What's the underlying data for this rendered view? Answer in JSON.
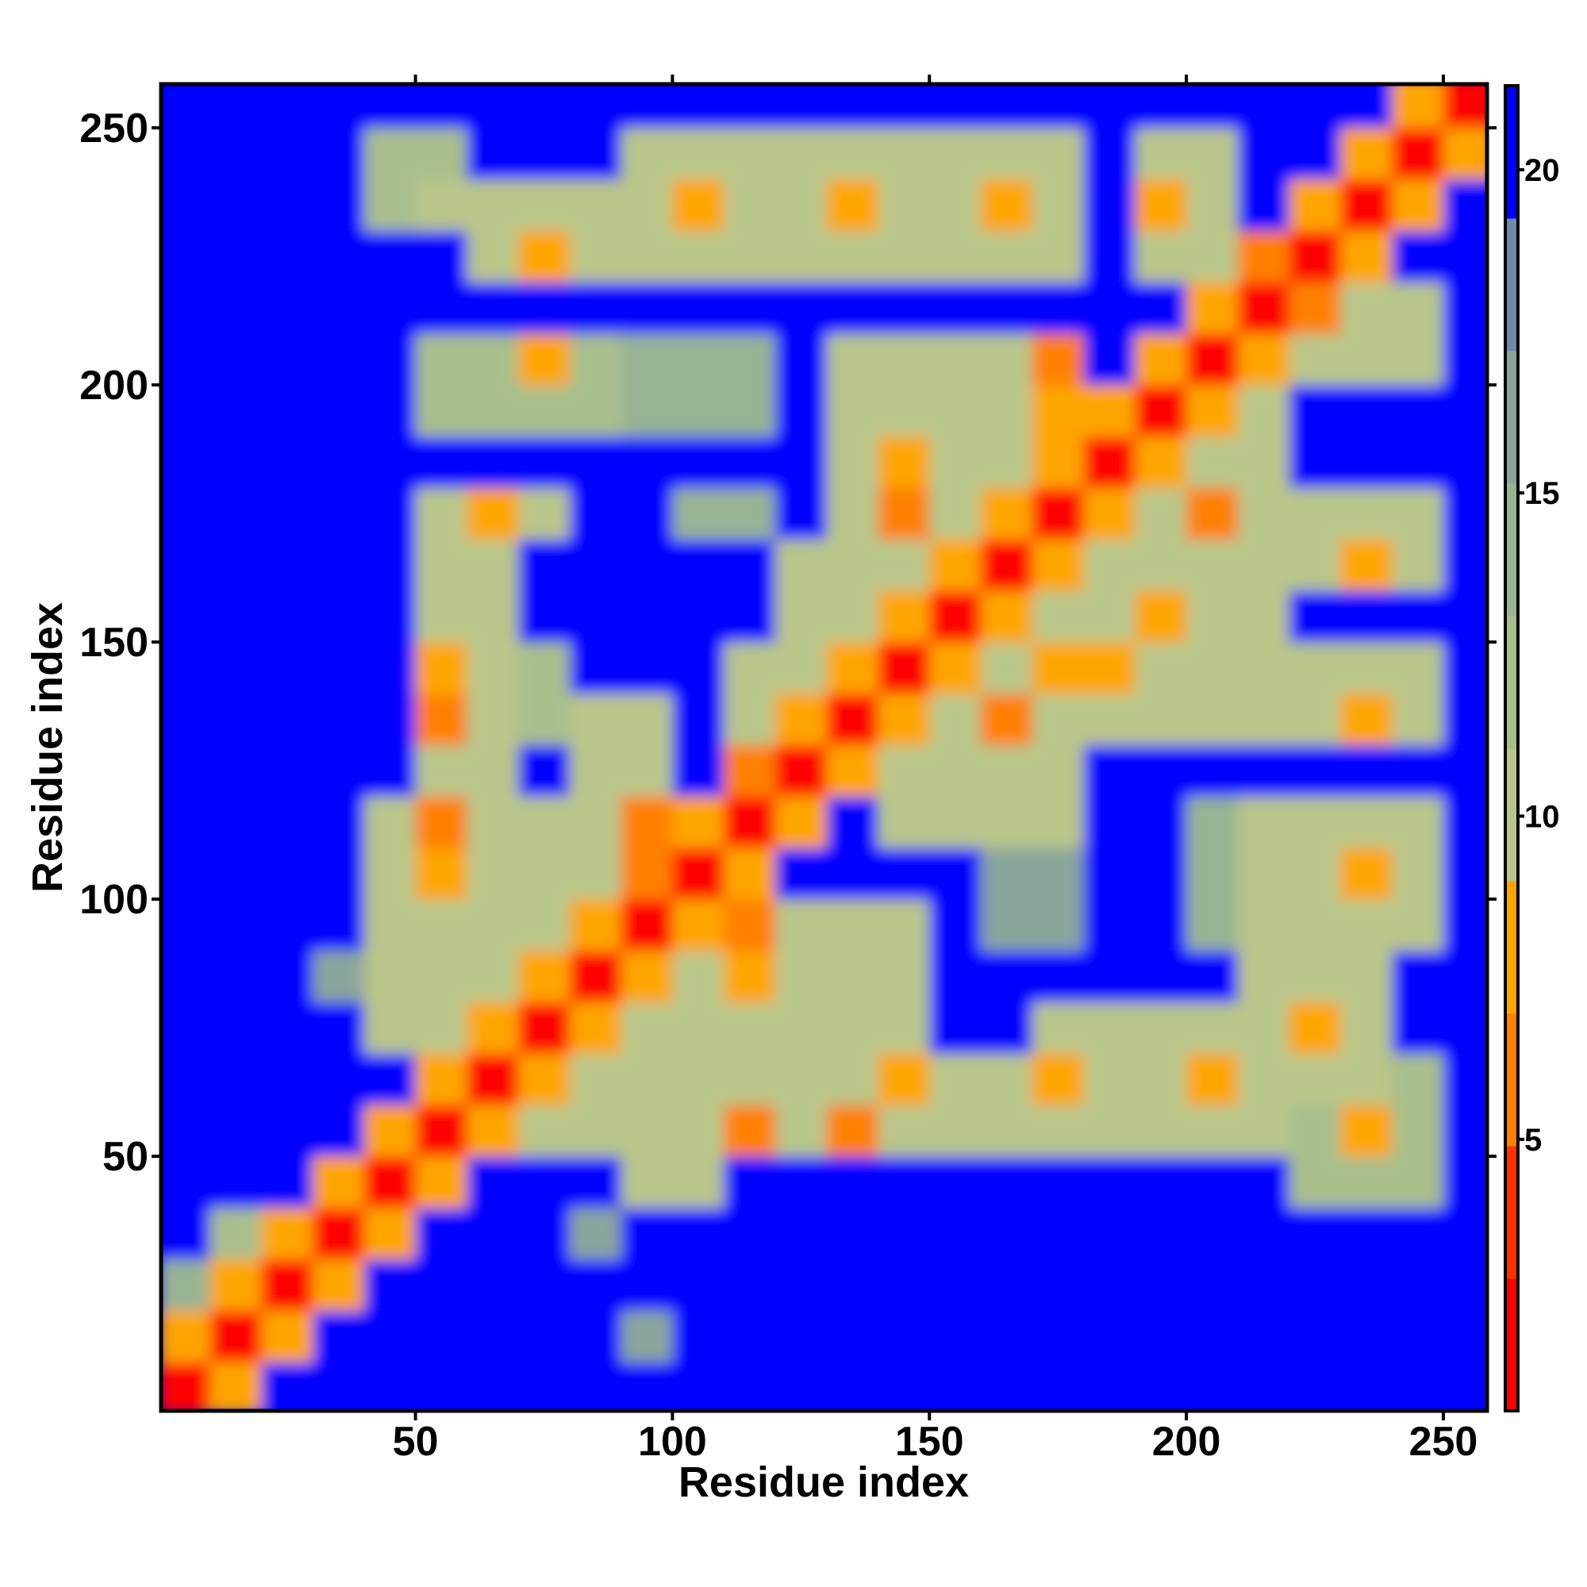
{
  "chart_data": {
    "type": "heatmap",
    "xlabel": "Residue index",
    "ylabel": "Residue index",
    "xlim": [
      0.5,
      258.5
    ],
    "ylim": [
      0.5,
      258.5
    ],
    "xticks": [
      50,
      100,
      150,
      200,
      250
    ],
    "yticks": [
      50,
      100,
      150,
      200,
      250
    ],
    "clim": [
      0.8,
      21.3
    ],
    "cticks": [
      5,
      10,
      15,
      20
    ],
    "colors": [
      "#ff0000",
      "#ff3300",
      "#ff8000",
      "#ffa500",
      "#b9c68a",
      "#a8bf8c",
      "#98b494",
      "#8aa69c",
      "#6f8aa8",
      "#0000ff"
    ],
    "x": [
      5,
      15,
      25,
      35,
      45,
      55,
      65,
      75,
      85,
      95,
      105,
      115,
      125,
      135,
      145,
      155,
      165,
      175,
      185,
      195,
      205,
      215,
      225,
      235,
      245,
      255
    ],
    "y": [
      5,
      15,
      25,
      35,
      45,
      55,
      65,
      75,
      85,
      95,
      105,
      115,
      125,
      135,
      145,
      155,
      165,
      175,
      185,
      195,
      205,
      215,
      225,
      235,
      245,
      255
    ],
    "z": [
      [
        2,
        9,
        21,
        21,
        21,
        21,
        21,
        21,
        21,
        21,
        21,
        21,
        21,
        21,
        21,
        21,
        21,
        21,
        21,
        21,
        21,
        21,
        21,
        21,
        21,
        21
      ],
      [
        9,
        2,
        9,
        21,
        21,
        21,
        21,
        21,
        21,
        17,
        21,
        21,
        21,
        21,
        21,
        21,
        21,
        21,
        21,
        21,
        21,
        21,
        21,
        21,
        21,
        21
      ],
      [
        14,
        8,
        2,
        9,
        21,
        21,
        21,
        21,
        21,
        21,
        21,
        21,
        21,
        21,
        21,
        21,
        21,
        21,
        21,
        21,
        21,
        21,
        21,
        21,
        21,
        21
      ],
      [
        21,
        12,
        8,
        2,
        9,
        21,
        21,
        21,
        16,
        21,
        21,
        21,
        21,
        21,
        21,
        21,
        21,
        21,
        21,
        21,
        21,
        21,
        21,
        21,
        21,
        21
      ],
      [
        21,
        21,
        21,
        9,
        2,
        9,
        21,
        21,
        21,
        11,
        11,
        21,
        21,
        21,
        21,
        21,
        21,
        21,
        21,
        21,
        21,
        21,
        12,
        12,
        12,
        21
      ],
      [
        21,
        21,
        21,
        21,
        9,
        2,
        9,
        11,
        11,
        11,
        11,
        6,
        11,
        6,
        11,
        11,
        11,
        11,
        11,
        11,
        11,
        11,
        12,
        8,
        12,
        21
      ],
      [
        21,
        21,
        21,
        21,
        21,
        9,
        2,
        9,
        11,
        11,
        11,
        11,
        11,
        11,
        7,
        11,
        11,
        8,
        11,
        11,
        8,
        11,
        11,
        11,
        12,
        21
      ],
      [
        21,
        21,
        21,
        21,
        11,
        11,
        9,
        2,
        9,
        11,
        11,
        11,
        11,
        11,
        11,
        21,
        21,
        11,
        11,
        11,
        11,
        11,
        8,
        11,
        21,
        21
      ],
      [
        21,
        21,
        21,
        16,
        11,
        11,
        11,
        9,
        2,
        9,
        11,
        7,
        11,
        11,
        11,
        21,
        21,
        21,
        21,
        21,
        21,
        11,
        11,
        11,
        21,
        21
      ],
      [
        21,
        21,
        21,
        21,
        11,
        11,
        11,
        11,
        9,
        2,
        9,
        6,
        11,
        11,
        11,
        21,
        16,
        16,
        21,
        21,
        15,
        11,
        11,
        11,
        11,
        21
      ],
      [
        21,
        21,
        21,
        21,
        11,
        8,
        11,
        11,
        11,
        6,
        2,
        9,
        21,
        21,
        21,
        21,
        16,
        16,
        21,
        21,
        15,
        11,
        11,
        8,
        11,
        21
      ],
      [
        21,
        21,
        21,
        21,
        11,
        6,
        11,
        11,
        11,
        6,
        9,
        2,
        9,
        21,
        11,
        11,
        11,
        11,
        21,
        21,
        15,
        11,
        11,
        11,
        11,
        21
      ],
      [
        21,
        21,
        21,
        21,
        21,
        11,
        11,
        21,
        11,
        11,
        21,
        6,
        2,
        9,
        11,
        11,
        11,
        11,
        21,
        21,
        21,
        21,
        21,
        21,
        21,
        21
      ],
      [
        21,
        21,
        21,
        21,
        21,
        6,
        11,
        12,
        11,
        11,
        21,
        10,
        9,
        2,
        9,
        11,
        6,
        11,
        11,
        11,
        11,
        11,
        11,
        8,
        11,
        21
      ],
      [
        21,
        21,
        21,
        21,
        21,
        7,
        11,
        12,
        21,
        21,
        21,
        10,
        10,
        9,
        2,
        9,
        11,
        7,
        8,
        11,
        11,
        11,
        11,
        11,
        11,
        21
      ],
      [
        21,
        21,
        21,
        21,
        21,
        11,
        11,
        21,
        21,
        21,
        21,
        21,
        11,
        11,
        9,
        2,
        9,
        11,
        11,
        8,
        11,
        11,
        21,
        21,
        21,
        21
      ],
      [
        21,
        21,
        21,
        21,
        21,
        11,
        11,
        21,
        21,
        21,
        21,
        21,
        11,
        11,
        11,
        9,
        2,
        9,
        11,
        11,
        11,
        11,
        11,
        7,
        11,
        21
      ],
      [
        21,
        21,
        21,
        21,
        21,
        11,
        8,
        11,
        21,
        21,
        15,
        15,
        21,
        11,
        6,
        11,
        9,
        2,
        9,
        11,
        6,
        11,
        11,
        11,
        11,
        21
      ],
      [
        21,
        21,
        21,
        21,
        21,
        21,
        21,
        21,
        21,
        21,
        21,
        21,
        21,
        11,
        7,
        11,
        11,
        9,
        2,
        9,
        11,
        11,
        21,
        21,
        21,
        21
      ],
      [
        21,
        21,
        21,
        21,
        21,
        12,
        12,
        12,
        12,
        15,
        15,
        15,
        21,
        11,
        11,
        11,
        10,
        7,
        9,
        2,
        9,
        11,
        21,
        21,
        21,
        21
      ],
      [
        21,
        21,
        21,
        21,
        21,
        12,
        12,
        8,
        12,
        15,
        15,
        15,
        21,
        11,
        11,
        11,
        11,
        6,
        21,
        9,
        2,
        9,
        11,
        11,
        11,
        21
      ],
      [
        21,
        21,
        21,
        21,
        21,
        21,
        21,
        21,
        21,
        21,
        21,
        21,
        21,
        21,
        21,
        21,
        21,
        21,
        21,
        21,
        9,
        2,
        6,
        11,
        11,
        21
      ],
      [
        21,
        21,
        21,
        21,
        21,
        21,
        11,
        7,
        11,
        11,
        11,
        11,
        11,
        11,
        11,
        11,
        11,
        11,
        21,
        11,
        11,
        6,
        2,
        9,
        21,
        21
      ],
      [
        21,
        21,
        21,
        21,
        12,
        10,
        11,
        11,
        11,
        11,
        8,
        11,
        11,
        8,
        11,
        11,
        7,
        11,
        21,
        9,
        11,
        21,
        9,
        2,
        9,
        21
      ],
      [
        21,
        21,
        21,
        21,
        12,
        12,
        21,
        21,
        21,
        11,
        11,
        11,
        11,
        11,
        11,
        11,
        11,
        11,
        21,
        11,
        11,
        21,
        21,
        9,
        2,
        9
      ],
      [
        21,
        21,
        21,
        21,
        21,
        21,
        21,
        21,
        21,
        21,
        21,
        21,
        21,
        21,
        21,
        21,
        21,
        21,
        21,
        21,
        21,
        21,
        21,
        21,
        9,
        2
      ]
    ]
  }
}
